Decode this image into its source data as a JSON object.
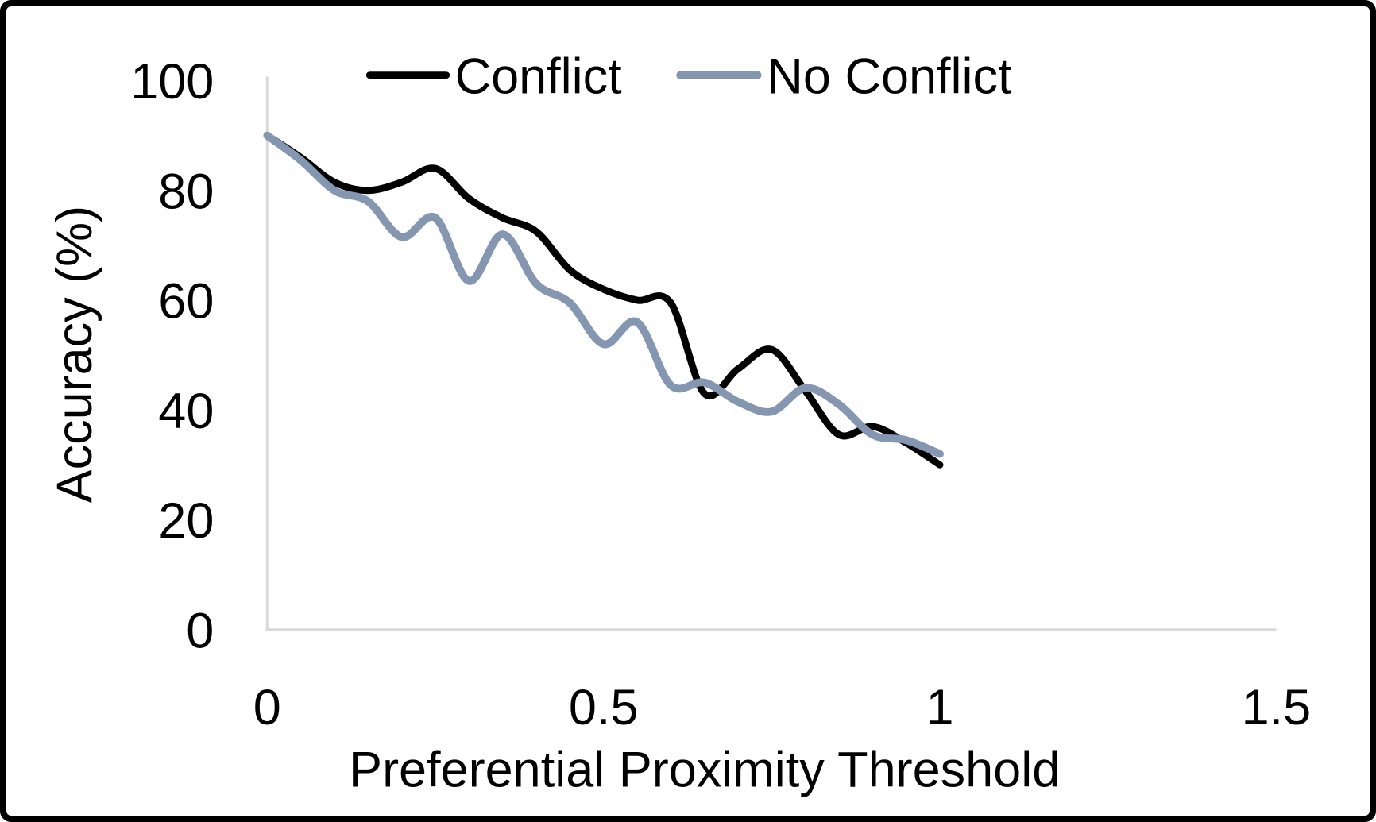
{
  "figure": {
    "background": "#ffffff",
    "border_color": "#000000"
  },
  "legend": {
    "position": "top-center",
    "items": [
      {
        "label": "Conflict",
        "color": "#000000"
      },
      {
        "label": "No Conflict",
        "color": "#8496B0"
      }
    ]
  },
  "chart_data": {
    "type": "line",
    "title": "",
    "xlabel": "Preferential Proximity Threshold",
    "ylabel": "Accuracy (%)",
    "xlim": [
      0,
      1.5
    ],
    "ylim": [
      0,
      100
    ],
    "grid": false,
    "smooth_lines": true,
    "axis_color": "#D9D9D9",
    "text_color": "#000000",
    "legend_position": "top",
    "xticks": [
      {
        "value": 0,
        "label": "0"
      },
      {
        "value": 0.5,
        "label": "0.5"
      },
      {
        "value": 1,
        "label": "1"
      },
      {
        "value": 1.5,
        "label": "1.5"
      }
    ],
    "yticks": [
      {
        "value": 0,
        "label": "0"
      },
      {
        "value": 20,
        "label": "20"
      },
      {
        "value": 40,
        "label": "40"
      },
      {
        "value": 60,
        "label": "60"
      },
      {
        "value": 80,
        "label": "80"
      },
      {
        "value": 100,
        "label": "100"
      }
    ],
    "x": [
      0,
      0.05,
      0.1,
      0.15,
      0.2,
      0.25,
      0.3,
      0.35,
      0.4,
      0.45,
      0.5,
      0.55,
      0.6,
      0.65,
      0.7,
      0.75,
      0.8,
      0.85,
      0.9,
      0.95,
      1.0
    ],
    "series": [
      {
        "name": "Conflict",
        "color": "#000000",
        "values": [
          90,
          86,
          81.5,
          80,
          81.5,
          84,
          78.5,
          75,
          72.5,
          65.5,
          62,
          60,
          59.5,
          43,
          47.5,
          51,
          43.5,
          35.5,
          37,
          34,
          30
        ]
      },
      {
        "name": "No Conflict",
        "color": "#8496B0",
        "values": [
          90,
          85.5,
          80,
          78,
          71.5,
          75,
          63.5,
          72,
          63,
          59.5,
          52,
          56,
          44.5,
          45,
          41.5,
          39.7,
          44,
          41,
          35.5,
          34.5,
          32
        ]
      }
    ]
  }
}
